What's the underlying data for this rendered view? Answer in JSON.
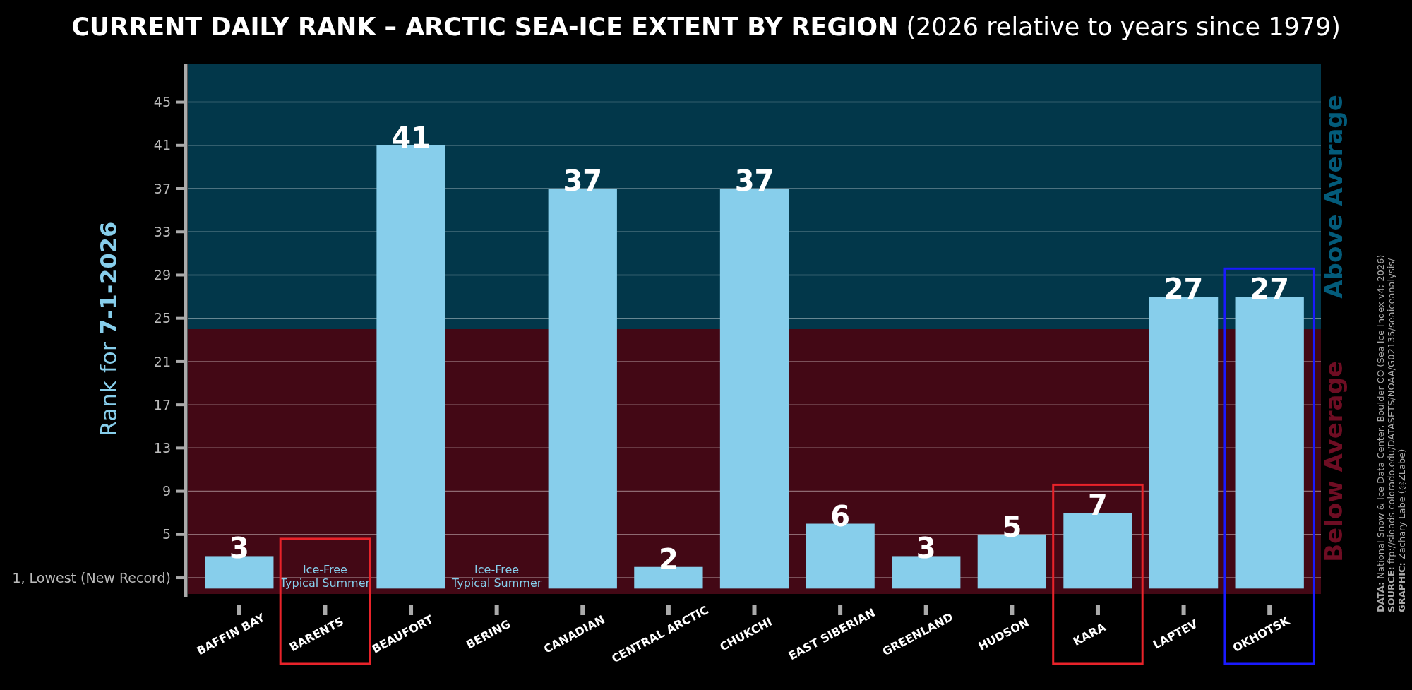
{
  "chart_data": {
    "type": "bar",
    "title": "CURRENT DAILY RANK – ARCTIC SEA-ICE EXTENT BY REGION",
    "subtitle": "(2026 relative to years since 1979)",
    "ylabel": "Rank for 7-1-2026",
    "categories": [
      "BAFFIN BAY",
      "BARENTS",
      "BEAUFORT",
      "BERING",
      "CANADIAN",
      "CENTRAL ARCTIC",
      "CHUKCHI",
      "EAST SIBERIAN",
      "GREENLAND",
      "HUDSON",
      "KARA",
      "LAPTEV",
      "OKHOTSK"
    ],
    "values": [
      3,
      null,
      41,
      null,
      37,
      2,
      37,
      6,
      3,
      5,
      7,
      27,
      27
    ],
    "color": "#87ceeb",
    "data_labels": true,
    "grid": "y",
    "ylim": [
      -0.5,
      48.5
    ],
    "yticks": [
      {
        "value": 1,
        "label": "1, Lowest (New Record)"
      },
      5,
      9,
      13,
      17,
      21,
      25,
      29,
      33,
      37,
      41,
      45
    ],
    "bands": [
      {
        "axis": "y",
        "from": 24,
        "to": 48.5,
        "label": "Above Average",
        "color": "#02374a"
      },
      {
        "axis": "y",
        "from": -0.5,
        "to": 24,
        "label": "Below Average",
        "color": "#430815"
      }
    ],
    "annotations": [
      "Ice-Free Typical Summer",
      "Ice-Free Typical Summer",
      "DATA: National Snow & Ice Data Center, Boulder CO (Sea Ice Index v4; 2026)",
      "SOURCE: ftp://sidads.colorado.edu/DATASETS/NOAA/G02135/seaiceanalysis/",
      "GRAPHIC: Zachary Labe (@ZLabe)"
    ]
  }
}
